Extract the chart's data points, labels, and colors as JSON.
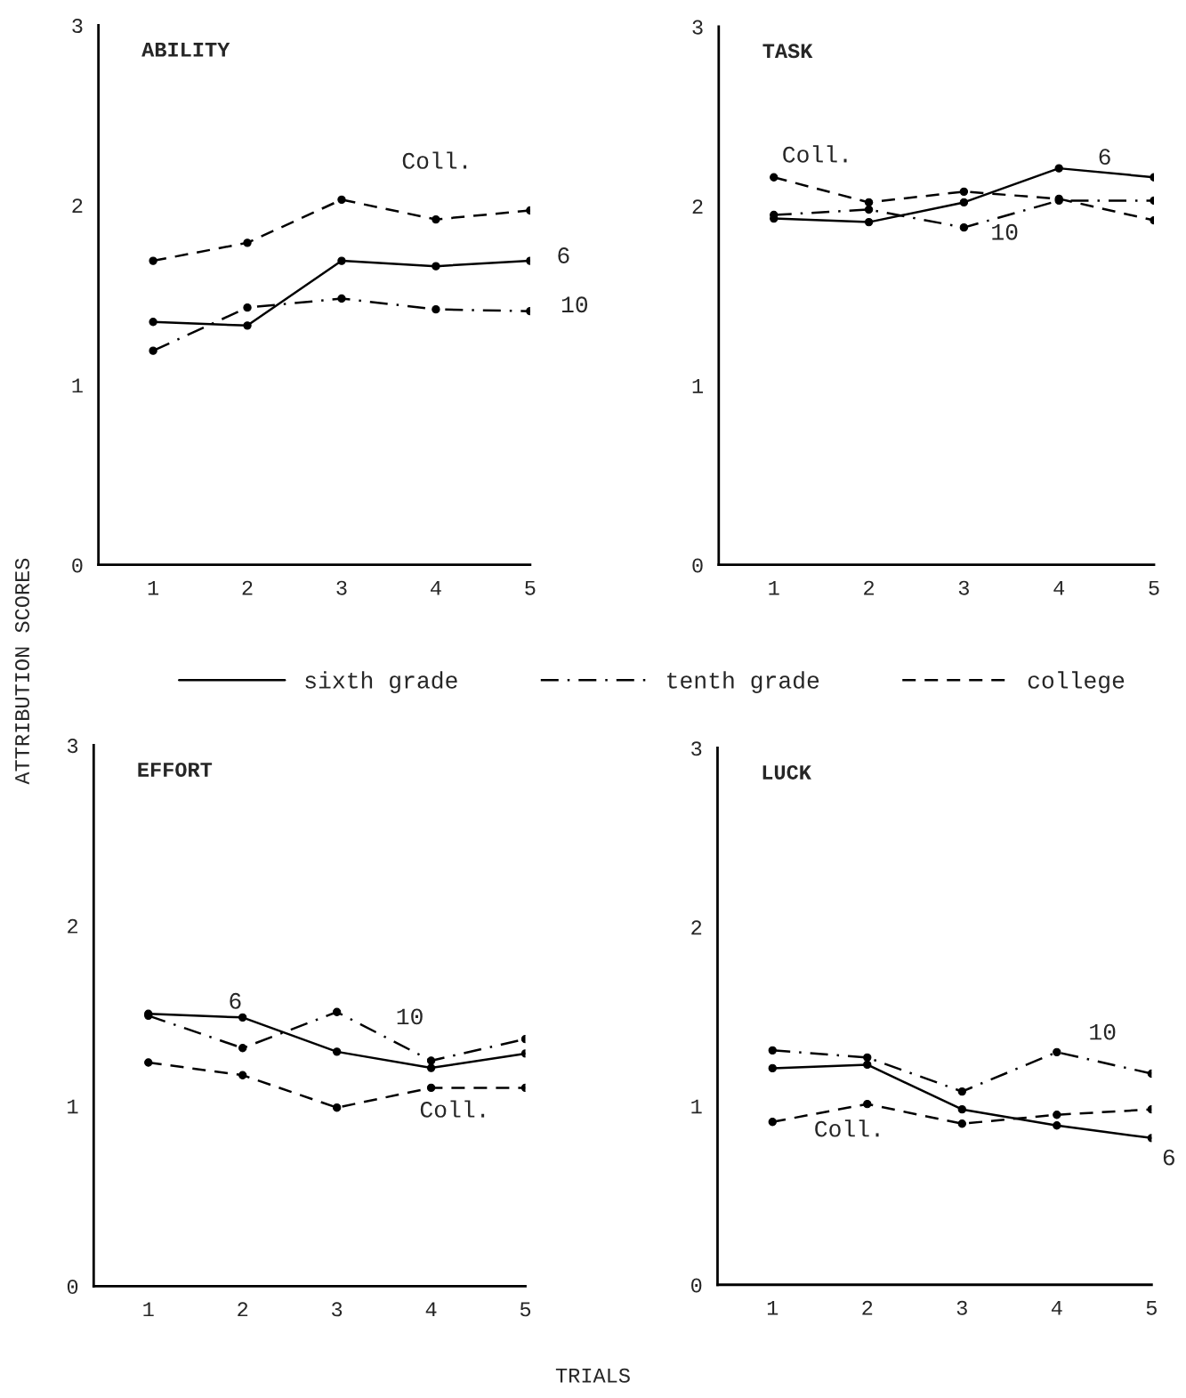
{
  "chart_data": [
    {
      "type": "line",
      "title": "ABILITY",
      "ylabel": "ATTRIBUTION SCORES",
      "x": [
        1,
        2,
        3,
        4,
        5
      ],
      "xlim": [
        0.42,
        5
      ],
      "xticks": [
        1,
        2,
        3,
        4,
        5
      ],
      "ylim": [
        0,
        3
      ],
      "yticks": [
        0,
        1,
        2,
        3
      ],
      "marker": "circle",
      "legend": "bottom",
      "grid": false,
      "series": [
        {
          "name": "sixth grade",
          "color": "#000000",
          "line_style": "solid",
          "values": [
            1.35,
            1.33,
            1.69,
            1.66,
            1.69
          ]
        },
        {
          "name": "tenth grade",
          "color": "#000000",
          "line_style": "dashdot",
          "values": [
            1.19,
            1.43,
            1.48,
            1.42,
            1.41
          ]
        },
        {
          "name": "college",
          "color": "#000000",
          "line_style": "dashed",
          "values": [
            1.69,
            1.79,
            2.03,
            1.92,
            1.97
          ]
        }
      ],
      "annotations": [
        {
          "text": "Coll.",
          "x": 3,
          "y": 2.03
        },
        {
          "text": "6",
          "x": 5,
          "y": 1.69
        },
        {
          "text": "10",
          "x": 5,
          "y": 1.41
        }
      ]
    },
    {
      "type": "line",
      "title": "TASK",
      "x": [
        1,
        2,
        3,
        4,
        5
      ],
      "xlim": [
        0.42,
        5
      ],
      "xticks": [
        1,
        2,
        3,
        4,
        5
      ],
      "ylim": [
        0,
        3
      ],
      "yticks": [
        0,
        1,
        2,
        3
      ],
      "marker": "circle",
      "grid": false,
      "series": [
        {
          "color": "#000000",
          "line_style": "solid",
          "values": [
            1.93,
            1.91,
            2.02,
            2.21,
            2.16
          ]
        },
        {
          "color": "#000000",
          "line_style": "dashdot",
          "values": [
            1.95,
            1.98,
            1.88,
            2.03,
            2.03
          ]
        },
        {
          "color": "#000000",
          "line_style": "dashed",
          "values": [
            2.16,
            2.02,
            2.08,
            2.04,
            1.92
          ]
        }
      ],
      "annotations": [
        {
          "text": "Coll.",
          "x": 1,
          "y": 2.16
        },
        {
          "text": "6",
          "x": 4,
          "y": 2.21
        },
        {
          "text": "10",
          "x": 3,
          "y": 1.88
        }
      ]
    },
    {
      "type": "line",
      "title": "EFFORT",
      "xlabel": "TRIALS",
      "x": [
        1,
        2,
        3,
        4,
        5
      ],
      "xlim": [
        0.42,
        5
      ],
      "xticks": [
        1,
        2,
        3,
        4,
        5
      ],
      "ylim": [
        0,
        3
      ],
      "yticks": [
        0,
        1,
        2,
        3
      ],
      "marker": "circle",
      "grid": false,
      "series": [
        {
          "color": "#000000",
          "line_style": "solid",
          "values": [
            1.51,
            1.49,
            1.3,
            1.21,
            1.29
          ]
        },
        {
          "color": "#000000",
          "line_style": "dashdot",
          "values": [
            1.5,
            1.32,
            1.52,
            1.25,
            1.37
          ]
        },
        {
          "color": "#000000",
          "line_style": "dashed",
          "values": [
            1.24,
            1.17,
            0.99,
            1.1,
            1.1
          ]
        }
      ],
      "annotations": [
        {
          "text": "6",
          "x": 2,
          "y": 1.49
        },
        {
          "text": "10",
          "x": 3,
          "y": 1.52
        },
        {
          "text": "Coll.",
          "x": 4,
          "y": 1.1
        }
      ]
    },
    {
      "type": "line",
      "title": "LUCK",
      "x": [
        1,
        2,
        3,
        4,
        5
      ],
      "xlim": [
        0.42,
        5
      ],
      "xticks": [
        1,
        2,
        3,
        4,
        5
      ],
      "ylim": [
        0,
        3
      ],
      "yticks": [
        0,
        1,
        2,
        3
      ],
      "marker": "circle",
      "grid": false,
      "series": [
        {
          "color": "#000000",
          "line_style": "solid",
          "values": [
            1.21,
            1.23,
            0.98,
            0.89,
            0.82
          ]
        },
        {
          "color": "#000000",
          "line_style": "dashdot",
          "values": [
            1.31,
            1.27,
            1.08,
            1.3,
            1.18
          ]
        },
        {
          "color": "#000000",
          "line_style": "dashed",
          "values": [
            0.91,
            1.01,
            0.9,
            0.95,
            0.98
          ]
        }
      ],
      "annotations": [
        {
          "text": "10",
          "x": 4,
          "y": 1.3
        },
        {
          "text": "Coll.",
          "x": 1,
          "y": 0.91
        },
        {
          "text": "6",
          "x": 5,
          "y": 0.82
        }
      ]
    }
  ]
}
